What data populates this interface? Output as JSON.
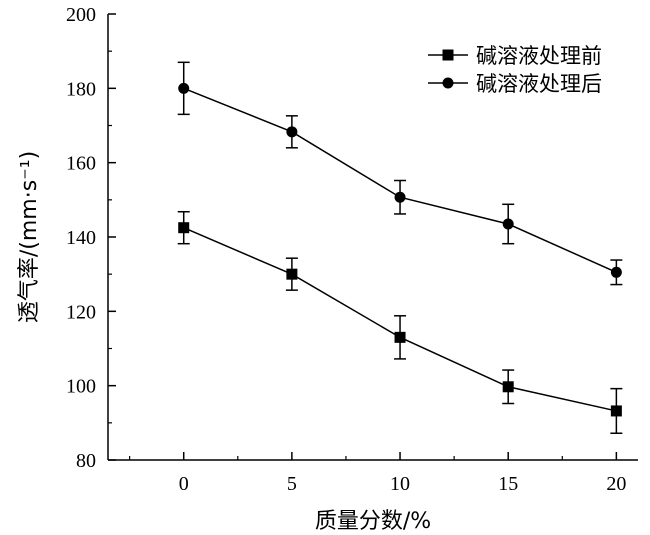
{
  "chart_data": {
    "type": "line",
    "xlabel": "质量分数/%",
    "ylabel": "透气率/(mm·s⁻¹)",
    "x": [
      0,
      5,
      10,
      15,
      20
    ],
    "xlim": [
      -3.5,
      21
    ],
    "ylim": [
      80,
      200
    ],
    "xticks": [
      0,
      5,
      10,
      15,
      20
    ],
    "yticks": [
      80,
      100,
      120,
      140,
      160,
      180,
      200
    ],
    "grid": false,
    "legend_position": "top-right",
    "series": [
      {
        "name": "碱溶液处理前",
        "marker": "square",
        "color": "#000000",
        "values": [
          142.5,
          130,
          113,
          99.7,
          93.2
        ],
        "error": [
          4.3,
          4.3,
          5.8,
          4.5,
          6.0
        ]
      },
      {
        "name": "碱溶液处理后",
        "marker": "circle",
        "color": "#000000",
        "values": [
          180,
          168.3,
          150.7,
          143.5,
          130.5
        ],
        "error": [
          7.0,
          4.3,
          4.5,
          5.3,
          3.3
        ]
      }
    ]
  }
}
